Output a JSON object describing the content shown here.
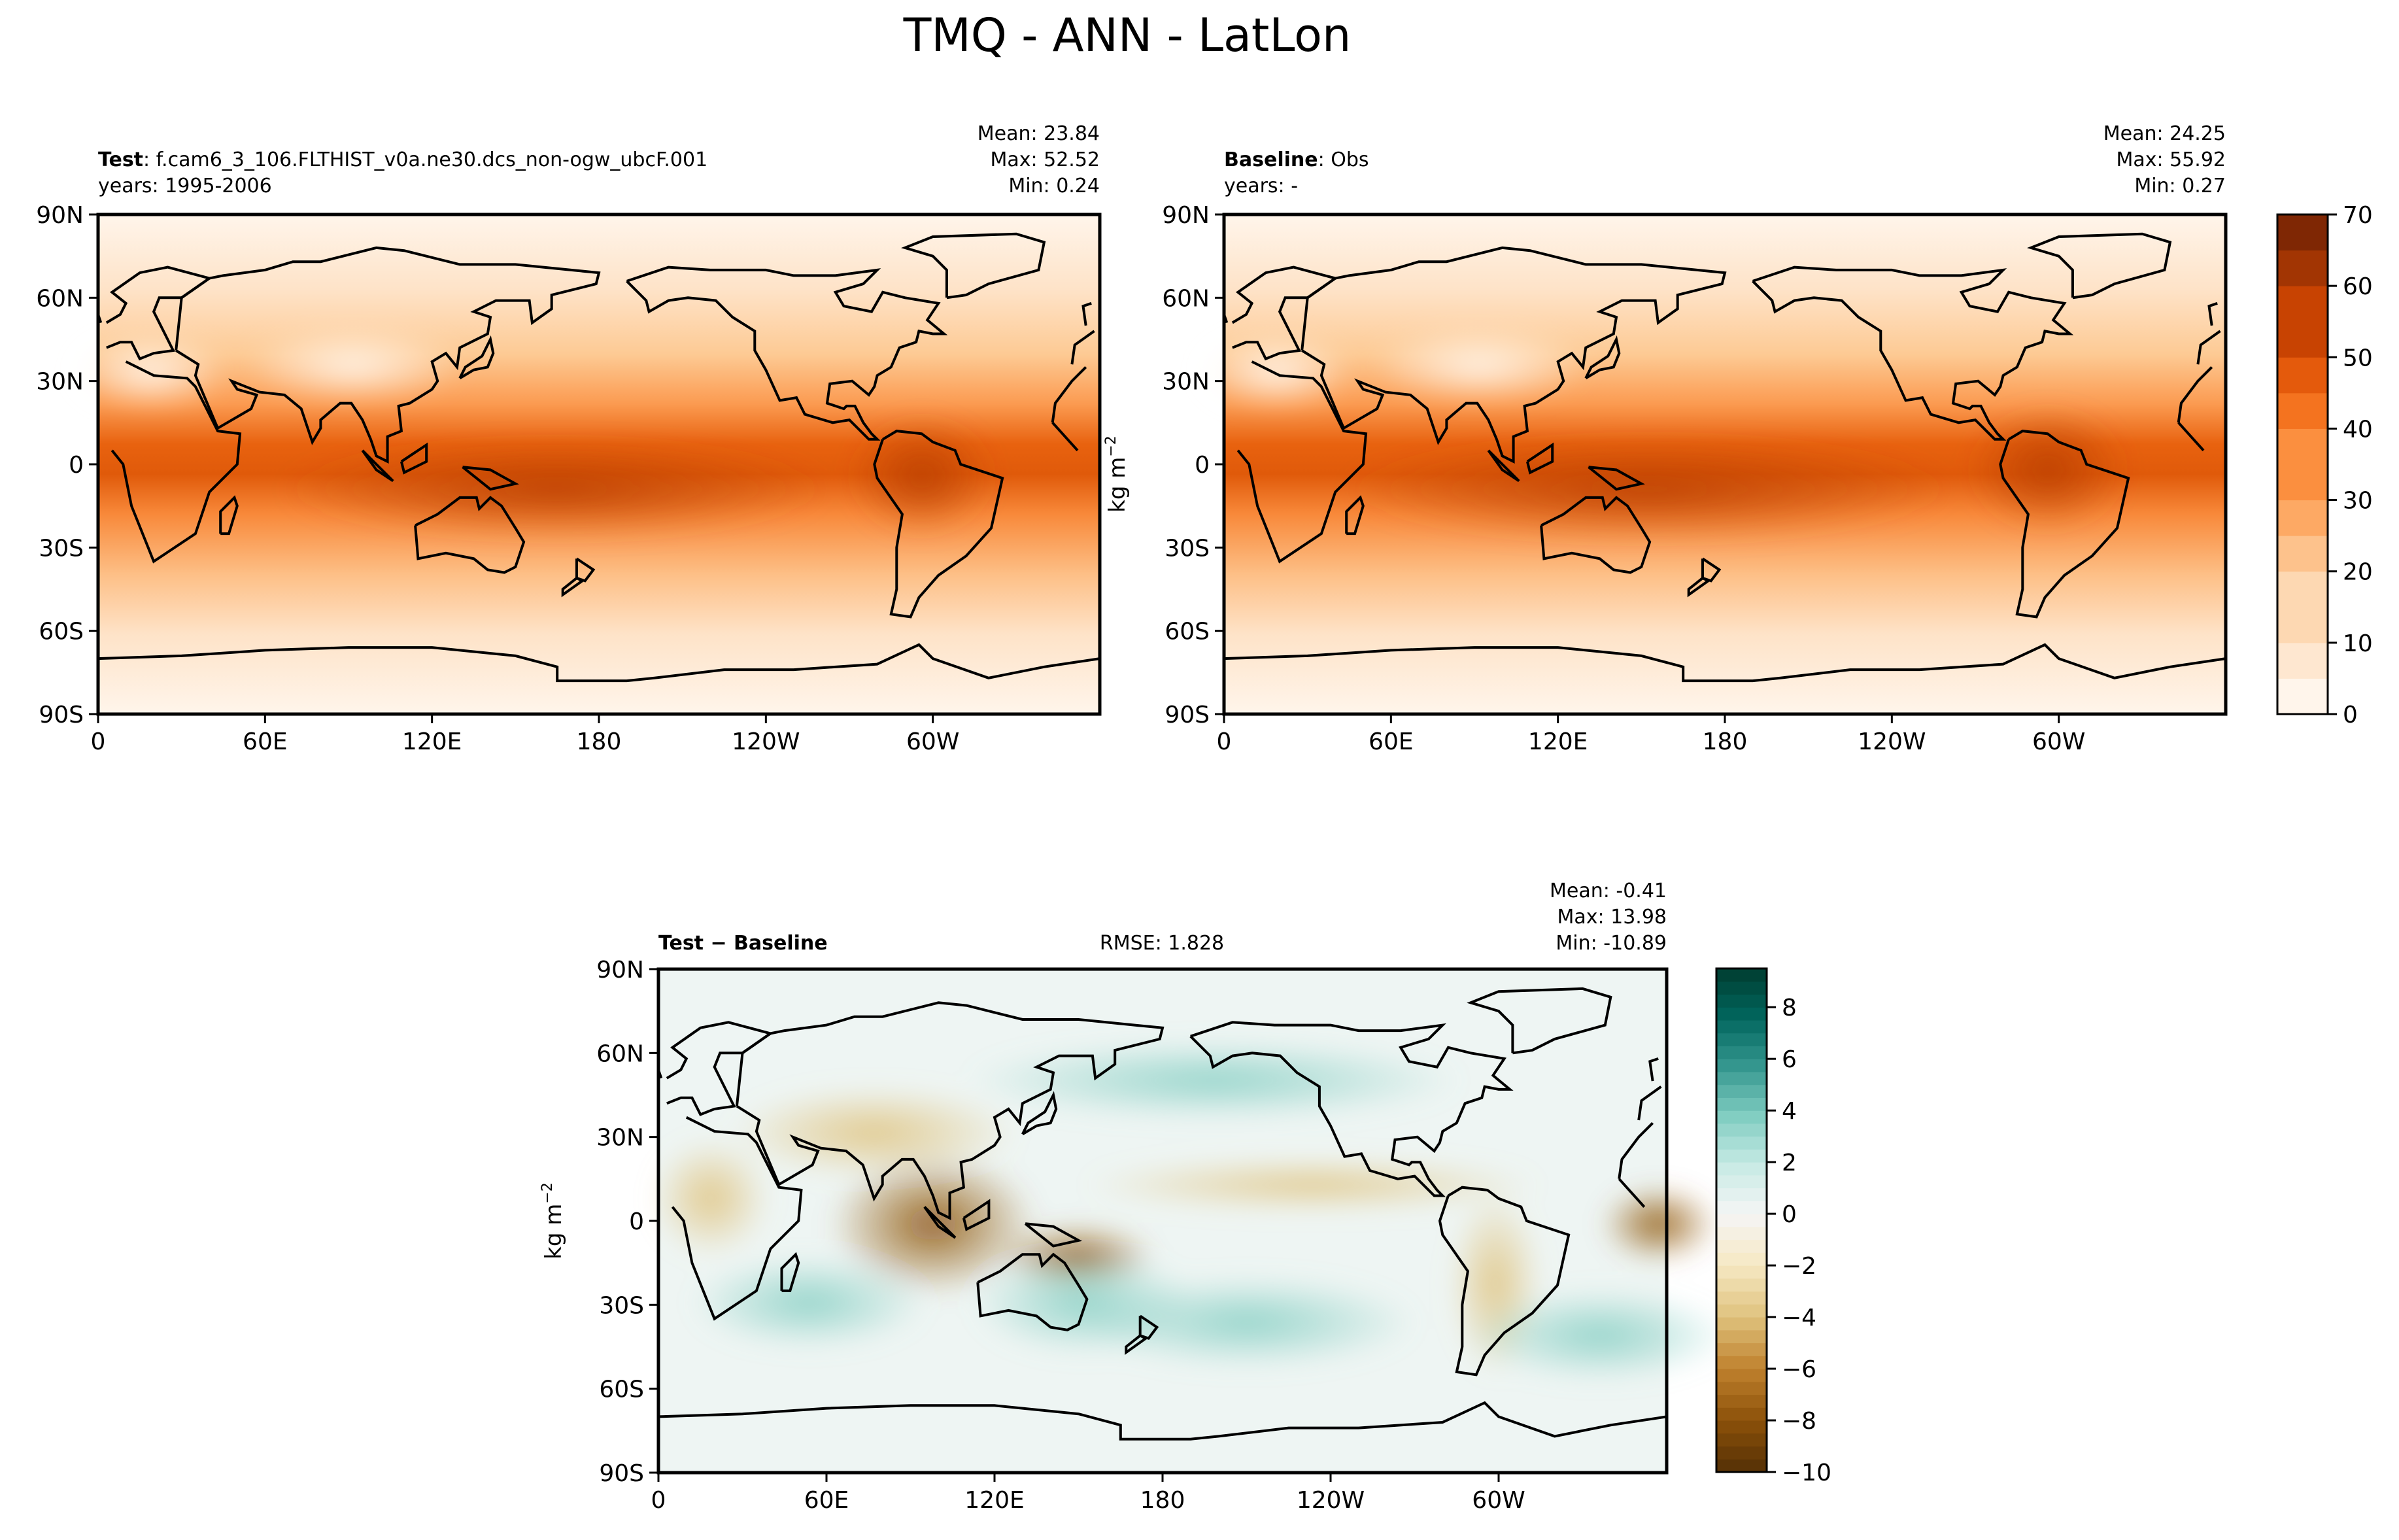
{
  "suptitle": "TMQ - ANN - LatLon",
  "lat_ticks": [
    "90N",
    "60N",
    "30N",
    "0",
    "30S",
    "60S",
    "90S"
  ],
  "lon_ticks": [
    "0",
    "60E",
    "120E",
    "180",
    "120W",
    "60W"
  ],
  "colors": {
    "moist_scale": [
      "#fff5eb",
      "#fee7d0",
      "#fdd8b2",
      "#fdc28c",
      "#fda964",
      "#fb8f3f",
      "#f4731f",
      "#e45a0c",
      "#c84302",
      "#a23503",
      "#7f2704"
    ],
    "diff_neg": "#543005",
    "diff_mid": "#f5f5f5",
    "diff_pos": "#003c30",
    "coast": "#000000"
  },
  "test_panel": {
    "label_bold": "Test",
    "label_rest": ": f.cam6_3_106.FLTHIST_v0a.ne30.dcs_non-ogw_ubcF.001",
    "years": "years: 1995-2006",
    "stats": [
      "Mean: 23.84",
      "Max: 52.52",
      "Min:  0.24"
    ]
  },
  "baseline_panel": {
    "label_bold": "Baseline",
    "label_rest": ": Obs",
    "years": "years: -",
    "stats": [
      "Mean: 24.25",
      "Max: 55.92",
      "Min:  0.27"
    ]
  },
  "diff_panel": {
    "label": "Test − Baseline",
    "rmse": "RMSE: 1.828",
    "stats": [
      "Mean: -0.41",
      "Max: 13.98",
      "Min: -10.89"
    ]
  },
  "units_label": "kg m",
  "units_exp": "−2",
  "colorbar_top": {
    "ticks": [
      "0",
      "10",
      "20",
      "30",
      "40",
      "50",
      "60",
      "70"
    ]
  },
  "colorbar_bottom": {
    "ticks": [
      "−10",
      "−8",
      "−6",
      "−4",
      "−2",
      "0",
      "2",
      "4",
      "6",
      "8"
    ]
  },
  "chart_data": [
    {
      "type": "heatmap",
      "title": "Test",
      "variable": "TMQ",
      "units": "kg m-2",
      "x_range": [
        0,
        360
      ],
      "y_range": [
        -90,
        90
      ],
      "mean": 23.84,
      "max": 52.52,
      "min": 0.24,
      "zlim": [
        0,
        70
      ]
    },
    {
      "type": "heatmap",
      "title": "Baseline",
      "variable": "TMQ",
      "units": "kg m-2",
      "x_range": [
        0,
        360
      ],
      "y_range": [
        -90,
        90
      ],
      "mean": 24.25,
      "max": 55.92,
      "min": 0.27,
      "zlim": [
        0,
        70
      ]
    },
    {
      "type": "heatmap",
      "title": "Test − Baseline",
      "variable": "TMQ",
      "units": "kg m-2",
      "x_range": [
        0,
        360
      ],
      "y_range": [
        -90,
        90
      ],
      "mean": -0.41,
      "max": 13.98,
      "min": -10.89,
      "rmse": 1.828,
      "zlim": [
        -10,
        9.5
      ]
    }
  ]
}
